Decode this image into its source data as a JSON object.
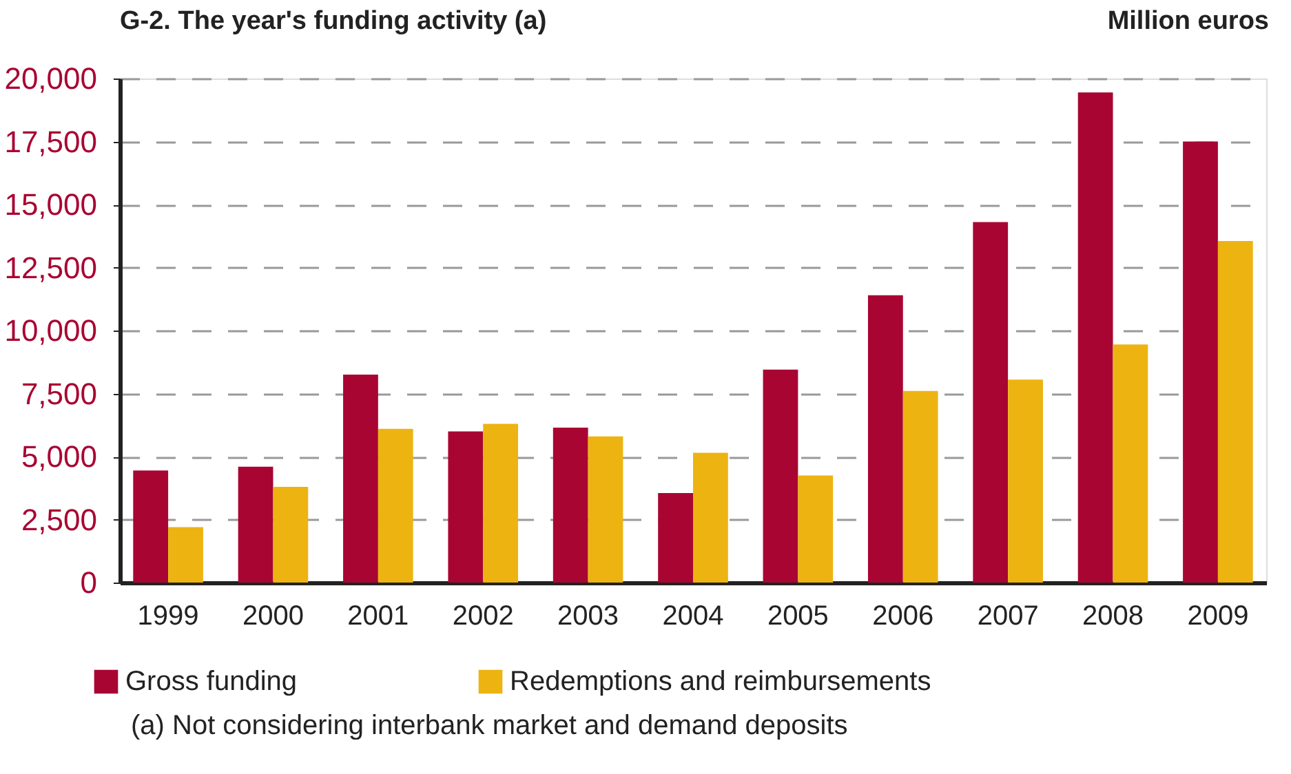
{
  "chart_data": {
    "type": "bar",
    "title": "G-2. The year's funding activity (a)",
    "ylabel": "Million euros",
    "categories": [
      "1999",
      "2000",
      "2001",
      "2002",
      "2003",
      "2004",
      "2005",
      "2006",
      "2007",
      "2008",
      "2009"
    ],
    "series": [
      {
        "name": "Gross funding",
        "color": "#a80532",
        "values": [
          4450,
          4600,
          8250,
          6000,
          6150,
          3550,
          8450,
          11400,
          14300,
          19450,
          17500
        ]
      },
      {
        "name": "Redemptions and reimbursements",
        "color": "#edb311",
        "values": [
          2200,
          3800,
          6100,
          6300,
          5800,
          5150,
          4250,
          7600,
          8050,
          9450,
          13550
        ]
      }
    ],
    "ylim": [
      0,
      20000
    ],
    "yticks": [
      {
        "value": 0,
        "label": "0"
      },
      {
        "value": 2500,
        "label": "2,500"
      },
      {
        "value": 5000,
        "label": "5,000"
      },
      {
        "value": 7500,
        "label": "7,500"
      },
      {
        "value": 10000,
        "label": "10,000"
      },
      {
        "value": 12500,
        "label": "12,500"
      },
      {
        "value": 15000,
        "label": "15,000"
      },
      {
        "value": 17500,
        "label": "17,500"
      },
      {
        "value": 20000,
        "label": "20,000"
      }
    ],
    "grid": "y",
    "legend": "bottom left",
    "annotations": [
      "(a) Not considering interbank market and demand deposits"
    ]
  }
}
